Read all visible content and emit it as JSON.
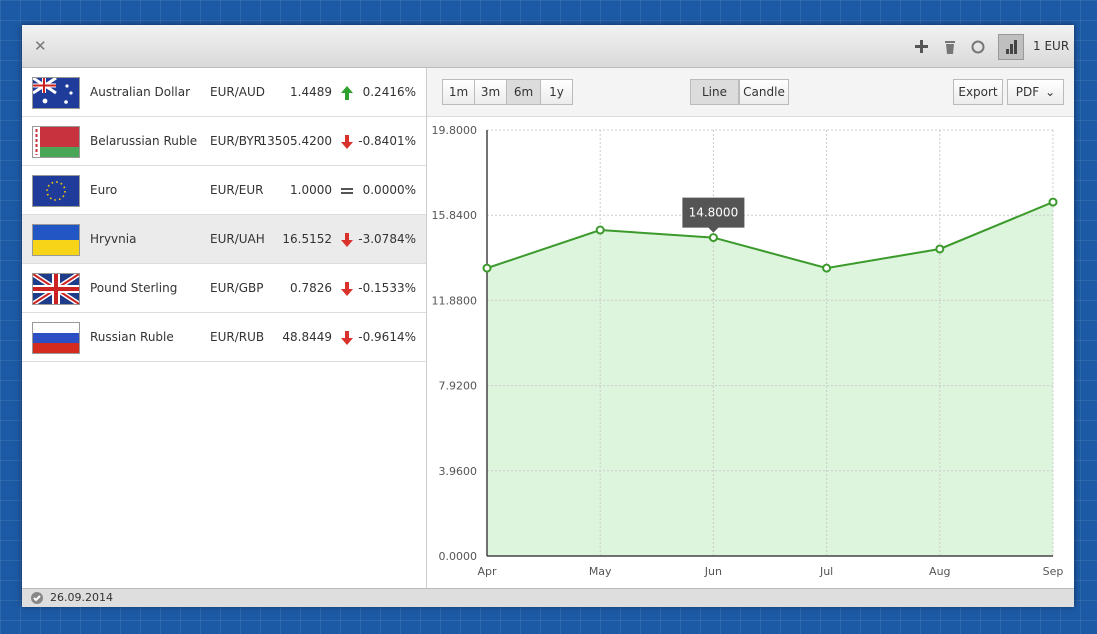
{
  "header": {
    "base": "1 EUR"
  },
  "rows": [
    {
      "name": "Australian Dollar",
      "pair": "EUR/AUD",
      "rate": "1.4489",
      "change": "0.2416%",
      "trend": "up",
      "flag": "au"
    },
    {
      "name": "Belarussian Ruble",
      "pair": "EUR/BYR",
      "rate": "13505.4200",
      "change": "-0.8401%",
      "trend": "down",
      "flag": "by"
    },
    {
      "name": "Euro",
      "pair": "EUR/EUR",
      "rate": "1.0000",
      "change": "0.0000%",
      "trend": "equal",
      "flag": "eu"
    },
    {
      "name": "Hryvnia",
      "pair": "EUR/UAH",
      "rate": "16.5152",
      "change": "-3.0784%",
      "trend": "down",
      "flag": "ua"
    },
    {
      "name": "Pound Sterling",
      "pair": "EUR/GBP",
      "rate": "0.7826",
      "change": "-0.1533%",
      "trend": "down",
      "flag": "gb"
    },
    {
      "name": "Russian Ruble",
      "pair": "EUR/RUB",
      "rate": "48.8449",
      "change": "-0.9614%",
      "trend": "down",
      "flag": "ru"
    }
  ],
  "selected_row": 3,
  "toolbar": {
    "periods": [
      "1m",
      "3m",
      "6m",
      "1y"
    ],
    "active_period": 2,
    "modes": [
      "Line",
      "Candle"
    ],
    "active_mode": 0,
    "export": "Export",
    "format": "PDF"
  },
  "status": {
    "date": "26.09.2014"
  },
  "chart_data": {
    "type": "area",
    "categories": [
      "Apr",
      "May",
      "Jun",
      "Jul",
      "Aug",
      "Sep"
    ],
    "values": [
      13.38,
      15.15,
      14.8,
      13.38,
      14.27,
      16.45
    ],
    "color": "#3b9a2b",
    "fill": "#dcf5dc",
    "tooltip": "14.8000",
    "tooltip_index": 2,
    "ylim": [
      0,
      19.8
    ],
    "yticks": [
      {
        "value": 0,
        "label": "0.0000"
      },
      {
        "value": 3.96,
        "label": "3.9600"
      },
      {
        "value": 7.92,
        "label": "7.9200"
      },
      {
        "value": 11.88,
        "label": "11.8800"
      },
      {
        "value": 15.84,
        "label": "15.8400"
      },
      {
        "value": 19.8,
        "label": "19.8000"
      }
    ],
    "grid": true
  }
}
